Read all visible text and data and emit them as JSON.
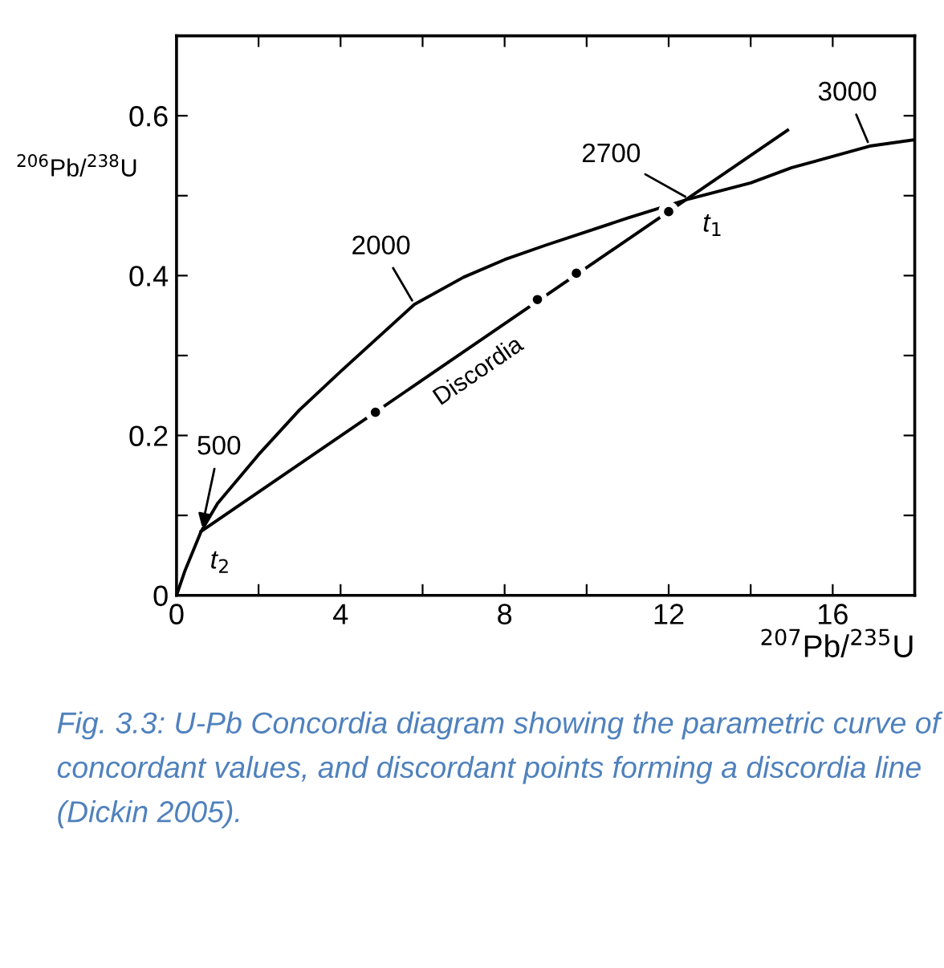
{
  "chart_data": {
    "type": "line",
    "xlabel": "$^{207}$Pb/$^{235}$U",
    "ylabel": "$^{206}$Pb/$^{238}$U",
    "xlim": [
      0,
      18
    ],
    "ylim": [
      0,
      0.7
    ],
    "xticks": [
      0,
      {
        "value": 2,
        "label": null
      },
      4,
      {
        "value": 6,
        "label": null
      },
      8,
      {
        "value": 10,
        "label": null
      },
      12,
      {
        "value": 14,
        "label": null
      },
      16
    ],
    "yticks": [
      0,
      {
        "value": 0.1,
        "label": null
      },
      0.2,
      {
        "value": 0.3,
        "label": null
      },
      0.4,
      {
        "value": 0.5,
        "label": null
      },
      0.6
    ],
    "grid": false,
    "legend": false,
    "series": [
      {
        "color": "#000000",
        "marker": "none",
        "x": [
          0,
          0.2,
          0.6,
          1,
          2,
          3,
          4,
          5.8,
          7,
          8,
          9,
          10,
          11,
          12.5,
          14,
          15,
          16.9,
          18
        ],
        "values": [
          0,
          0.03,
          0.08,
          0.115,
          0.176,
          0.232,
          0.28,
          0.364,
          0.398,
          0.42,
          0.438,
          0.455,
          0.472,
          0.496,
          0.516,
          0.535,
          0.562,
          0.57
        ]
      },
      {
        "name": "Discordia",
        "color": "#000000",
        "marker": "none",
        "x": [
          0.6,
          14.9
        ],
        "values": [
          0.08,
          0.582
        ]
      },
      {
        "type": "scatter",
        "color": "#000000",
        "marker": "circle",
        "x": [
          4.85,
          8.8,
          9.75,
          12.0
        ],
        "values": [
          0.229,
          0.37,
          0.403,
          0.48
        ]
      }
    ],
    "annotations": [
      {
        "text": "500",
        "x": 0.6,
        "y": 0.08
      },
      {
        "text": "2000",
        "x": 5.8,
        "y": 0.364
      },
      {
        "text": "2700",
        "x": 12.5,
        "y": 0.496
      },
      {
        "text": "3000",
        "x": 16.9,
        "y": 0.562
      },
      {
        "text": "t$_{1}$",
        "x": 12.5,
        "y": 0.496
      },
      {
        "text": "t$_{2}$",
        "x": 0.6,
        "y": 0.08
      },
      "Fig. 3.3: U-Pb Concordia diagram showing the parametric curve of concordant values, and discordant points forming a discordia line (Dickin 2005)."
    ]
  }
}
